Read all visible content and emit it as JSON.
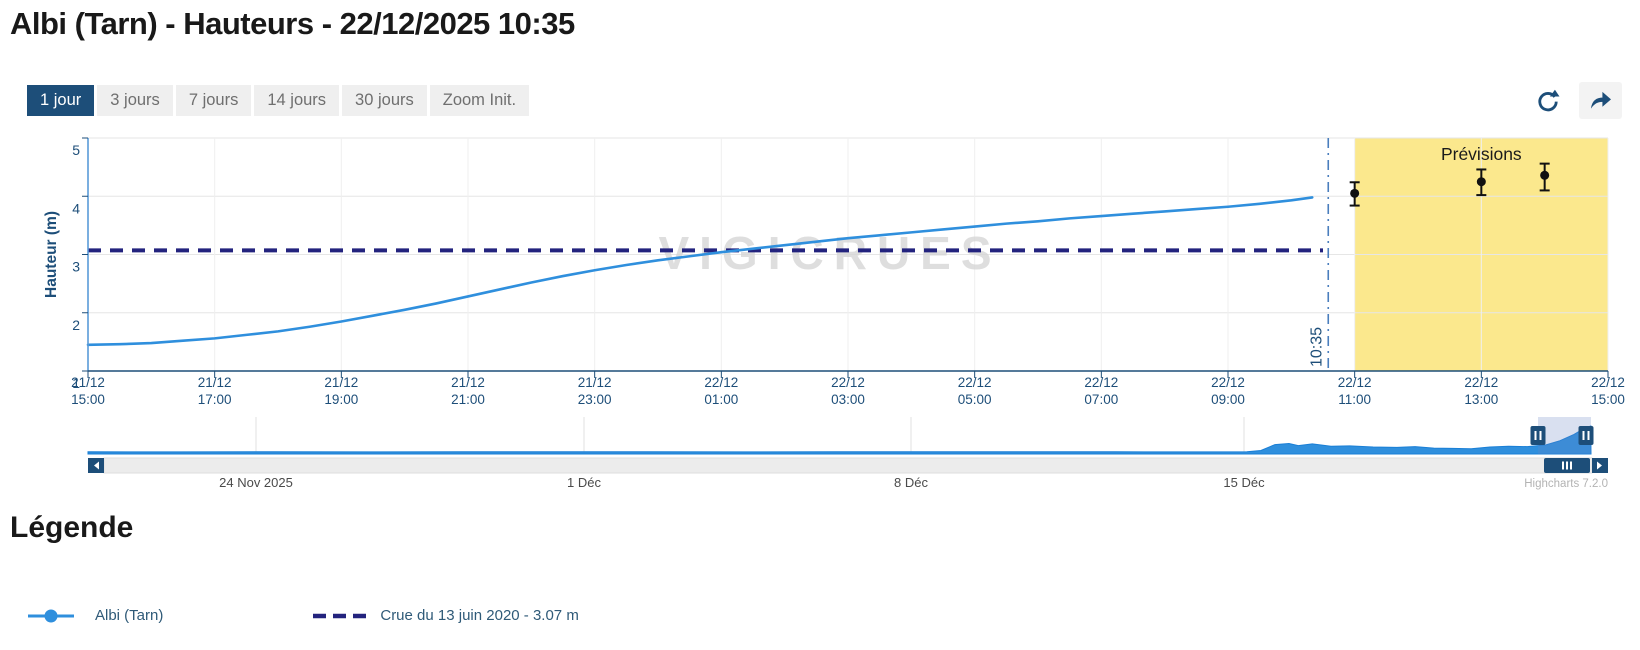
{
  "page": {
    "title": "Albi (Tarn) - Hauteurs - 22/12/2025 10:35"
  },
  "toolbar": {
    "range_buttons": [
      {
        "label": "1 jour",
        "active": true
      },
      {
        "label": "3 jours",
        "active": false
      },
      {
        "label": "7 jours",
        "active": false
      },
      {
        "label": "14 jours",
        "active": false
      },
      {
        "label": "30 jours",
        "active": false
      },
      {
        "label": "Zoom Init.",
        "active": false
      }
    ],
    "icons": [
      "refresh-icon",
      "share-arrow-icon"
    ]
  },
  "colors": {
    "primary_navy": "#1d4e79",
    "series_blue": "#2f8fdd",
    "threshold_navy": "#23237e",
    "forecast_band_yellow": "#fbe88d",
    "now_line_blue": "#4a7ebd",
    "grid_gray": "#e6e6e6",
    "watermark_gray": "#d4d4d4"
  },
  "chart_data": {
    "type": "line",
    "title": "",
    "xlabel": "",
    "ylabel": "Hauteur (m)",
    "ylim": [
      1,
      5
    ],
    "yticks": [
      1,
      2,
      3,
      4,
      5
    ],
    "x_hours_range": [
      0,
      24
    ],
    "xticks": [
      {
        "date": "21/12",
        "time": "15:00"
      },
      {
        "date": "21/12",
        "time": "17:00"
      },
      {
        "date": "21/12",
        "time": "19:00"
      },
      {
        "date": "21/12",
        "time": "21:00"
      },
      {
        "date": "21/12",
        "time": "23:00"
      },
      {
        "date": "22/12",
        "time": "01:00"
      },
      {
        "date": "22/12",
        "time": "03:00"
      },
      {
        "date": "22/12",
        "time": "05:00"
      },
      {
        "date": "22/12",
        "time": "07:00"
      },
      {
        "date": "22/12",
        "time": "09:00"
      },
      {
        "date": "22/12",
        "time": "11:00"
      },
      {
        "date": "22/12",
        "time": "13:00"
      },
      {
        "date": "22/12",
        "time": "15:00"
      }
    ],
    "series": [
      {
        "name": "Albi (Tarn)",
        "type": "line",
        "color": "#2f8fdd",
        "x_hours": [
          0,
          0.5,
          1,
          1.5,
          2,
          2.5,
          3,
          3.5,
          4,
          4.5,
          5,
          5.5,
          6,
          6.5,
          7,
          7.5,
          8,
          8.5,
          9,
          9.5,
          10,
          10.5,
          11,
          11.5,
          12,
          12.5,
          13,
          13.5,
          14,
          14.5,
          15,
          15.5,
          16,
          16.5,
          17,
          17.5,
          18,
          18.5,
          19,
          19.33
        ],
        "values": [
          1.45,
          1.46,
          1.48,
          1.52,
          1.56,
          1.62,
          1.68,
          1.76,
          1.85,
          1.95,
          2.05,
          2.16,
          2.28,
          2.4,
          2.52,
          2.63,
          2.73,
          2.82,
          2.9,
          2.97,
          3.04,
          3.1,
          3.16,
          3.22,
          3.28,
          3.33,
          3.38,
          3.43,
          3.48,
          3.53,
          3.57,
          3.62,
          3.66,
          3.7,
          3.74,
          3.78,
          3.82,
          3.87,
          3.93,
          3.98
        ]
      },
      {
        "name": "Crue du 13 juin 2020 - 3.07 m",
        "type": "threshold",
        "color": "#23237e",
        "value": 3.07
      }
    ],
    "forecast": {
      "label": "Prévisions",
      "band_start_hour": 20,
      "band_color": "#fbe88d",
      "points": [
        {
          "x_hour": 20.0,
          "value": 4.05,
          "low": 3.84,
          "high": 4.24
        },
        {
          "x_hour": 22.0,
          "value": 4.25,
          "low": 4.02,
          "high": 4.46
        },
        {
          "x_hour": 23.0,
          "value": 4.36,
          "low": 4.1,
          "high": 4.56
        }
      ]
    },
    "now_marker": {
      "x_hour": 19.583,
      "label": "10:35"
    },
    "watermark": "VIGICRUES",
    "navigator": {
      "dates": [
        "24 Nov 2025",
        "1 Déc",
        "8 Déc",
        "15 Déc"
      ],
      "series_days": [
        0,
        2,
        4,
        6,
        8,
        10,
        12,
        14,
        16,
        18,
        20,
        22,
        24,
        24.8,
        25.1,
        25.4,
        25.7,
        25.9,
        26.2,
        26.6,
        27,
        27.5,
        28,
        28.4,
        28.8,
        29.2,
        29.6,
        30,
        30.4,
        30.8,
        31.2,
        31.5,
        31.8,
        32,
        32.16
      ],
      "series_values": [
        0.32,
        0.3,
        0.33,
        0.3,
        0.32,
        0.31,
        0.33,
        0.3,
        0.32,
        0.31,
        0.33,
        0.31,
        0.3,
        0.32,
        0.5,
        1.35,
        1.5,
        1.2,
        1.45,
        1.1,
        1.15,
        1.0,
        0.95,
        1.05,
        0.85,
        0.8,
        0.75,
        1.0,
        1.1,
        1.05,
        1.3,
        1.9,
        2.8,
        3.6,
        4.0
      ]
    },
    "credits": "Highcharts 7.2.0"
  },
  "legend": {
    "heading": "Légende",
    "items": [
      {
        "label": "Albi (Tarn)",
        "marker": "line-circle",
        "color": "#2f8fdd"
      },
      {
        "label": "Crue du 13 juin 2020 - 3.07 m",
        "marker": "dashed-line",
        "color": "#23237e"
      }
    ]
  }
}
